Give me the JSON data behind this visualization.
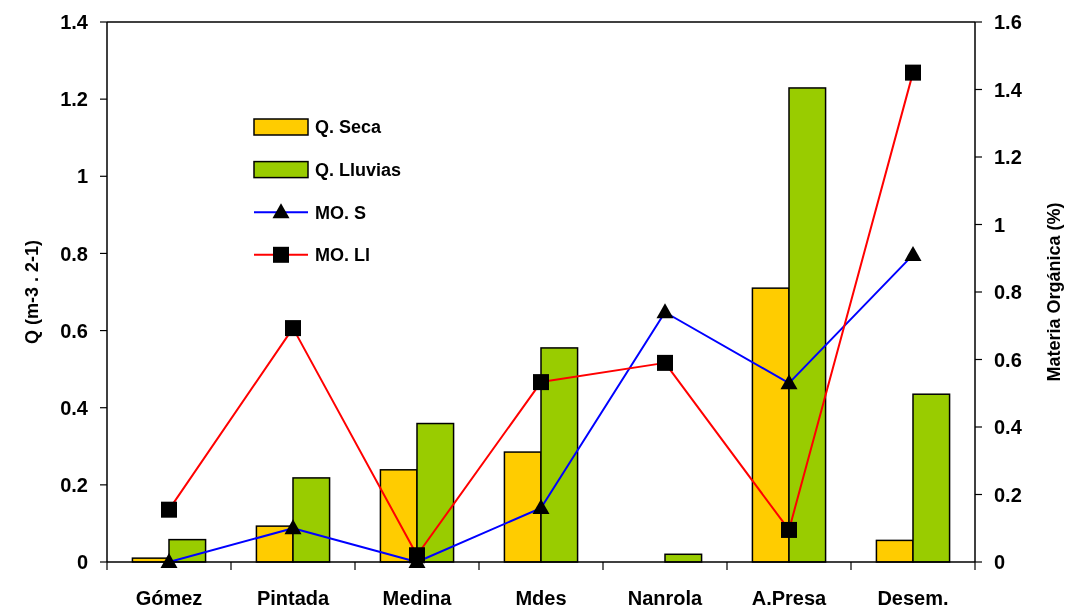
{
  "chart_data": {
    "type": "bar",
    "categories": [
      "Gómez",
      "Pintada",
      "Medina",
      "Mdes",
      "Nanrola",
      "A.Presa",
      "Desem."
    ],
    "series": [
      {
        "name": "Q. Seca",
        "color": "#ffcc00",
        "values": [
          0.01,
          0.093,
          0.239,
          0.285,
          null,
          0.71,
          0.056
        ]
      },
      {
        "name": "Q. Lluvias",
        "color": "#99cc00",
        "values": [
          0.058,
          0.218,
          0.359,
          0.555,
          0.02,
          1.229,
          0.435
        ]
      },
      {
        "name": "MO. S",
        "type": "line",
        "axis": "y2",
        "color": "#0000ff",
        "marker": "triangle",
        "values": [
          0,
          0.1,
          0,
          0.16,
          0.74,
          0.53,
          0.91
        ]
      },
      {
        "name": "MO. Ll",
        "type": "line",
        "axis": "y2",
        "color": "#ff0000",
        "marker": "square",
        "values": [
          0.155,
          0.693,
          0.02,
          0.533,
          0.59,
          0.095,
          1.45
        ]
      }
    ],
    "ylabel": "Q (m-3 . 2-1)",
    "y2label": "Materia Orgánica (%)",
    "ylim": [
      0,
      1.4
    ],
    "yticks": [
      0,
      0.2,
      0.4,
      0.6,
      0.8,
      1,
      1.2,
      1.4
    ],
    "y2lim": [
      0,
      1.6
    ],
    "y2ticks": [
      0,
      0.2,
      0.4,
      0.6,
      0.8,
      1,
      1.2,
      1.4,
      1.6
    ],
    "legend": "top left"
  }
}
